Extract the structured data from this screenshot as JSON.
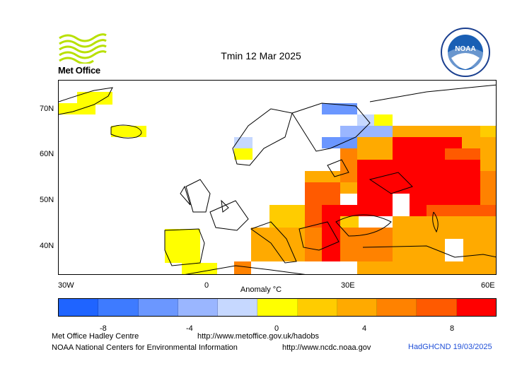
{
  "title": "Tmin 12 Mar 2025",
  "logos": {
    "metoffice_text": "Met Office",
    "noaa_text": "NOAA"
  },
  "map": {
    "y_labels": [
      "70N",
      "60N",
      "50N",
      "40N"
    ],
    "x_labels": [
      "30W",
      "0",
      "30E",
      "60E"
    ]
  },
  "colorbar": {
    "label": "Anomaly °C",
    "colors": [
      "#1f64ff",
      "#3e7bff",
      "#6b97ff",
      "#9ab6ff",
      "#c6d8ff",
      "#ffff00",
      "#ffcc00",
      "#ffaa00",
      "#ff8200",
      "#ff5a00",
      "#ff0000"
    ],
    "ticks": [
      "-8",
      "-4",
      "0",
      "4",
      "8"
    ]
  },
  "footer": {
    "line1_left": "Met Office Hadley Centre",
    "line1_right": "http://www.metoffice.gov.uk/hadobs",
    "line2_left": "NOAA National Centers for Environmental Information",
    "line2_right": "http://www.ncdc.noaa.gov",
    "tag": "HadGHCND 19/03/2025"
  }
}
